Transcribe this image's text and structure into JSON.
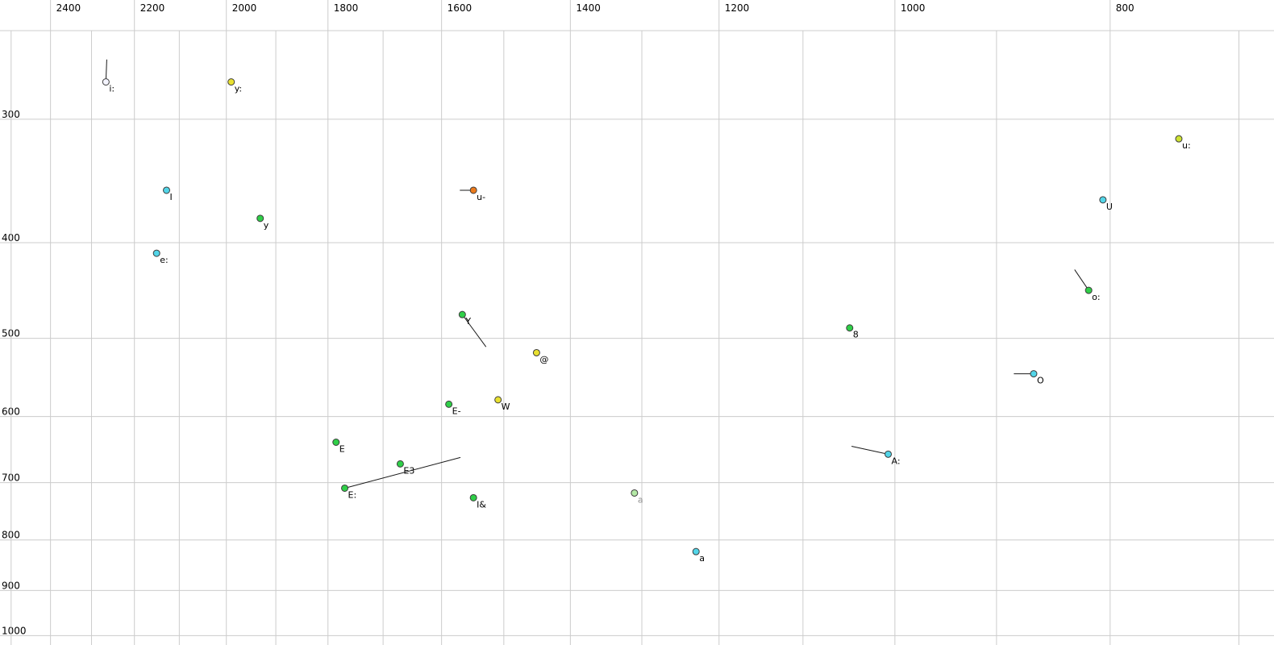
{
  "page": {
    "background": "#ffffff"
  },
  "chart_data": {
    "type": "scatter",
    "title": "",
    "description": "Vowel formant plot: F2 (Hz) on reversed log x-axis, F1 (Hz) on log y-axis increasing downward; points labeled with vowel symbols, some with diphthong tail lines",
    "x_axis": {
      "unit": "Hz",
      "scale": "log",
      "reversed": true,
      "range": [
        2529,
        675
      ],
      "labeled_ticks": [
        2400,
        2200,
        2000,
        1800,
        1600,
        1400,
        1200,
        1000,
        800
      ],
      "minor_gridlines": [
        2500,
        2300,
        2100,
        1900,
        1700,
        1500,
        1300,
        1100,
        900,
        700
      ]
    },
    "y_axis": {
      "unit": "Hz",
      "scale": "log",
      "range": [
        244,
        1022
      ],
      "labeled_ticks": [
        300,
        400,
        500,
        600,
        700,
        800,
        900,
        1000
      ]
    },
    "grid_on": true,
    "grid_color": "#cccccc",
    "marker_stroke": "#3c3c3c",
    "tail_color": "#1a1a1a",
    "label_color": "#000000",
    "palette": {
      "white": "#f4f4ff",
      "yellow": "#e8e030",
      "yellowgreen": "#cee332",
      "cyan": "#52d5e8",
      "green": "#2fcf48",
      "orange": "#ec7b1c",
      "palegreen": "#b4e9a6"
    },
    "points": [
      {
        "label": "i:",
        "f2": 2266,
        "f1": 275,
        "color": "white",
        "tail": {
          "f2": 2264,
          "f1": 261
        }
      },
      {
        "label": "y:",
        "f2": 1990,
        "f1": 275,
        "color": "yellow"
      },
      {
        "label": "I",
        "f2": 2128,
        "f1": 354,
        "color": "cyan"
      },
      {
        "label": "y",
        "f2": 1931,
        "f1": 378,
        "color": "green"
      },
      {
        "label": "e:",
        "f2": 2150,
        "f1": 410,
        "color": "cyan"
      },
      {
        "label": "u-",
        "f2": 1548,
        "f1": 354,
        "color": "orange",
        "tail": {
          "f2": 1570,
          "f1": 354
        }
      },
      {
        "label": "u:",
        "f2": 745,
        "f1": 314,
        "color": "yellowgreen"
      },
      {
        "label": "U",
        "f2": 806,
        "f1": 362,
        "color": "cyan"
      },
      {
        "label": "o:",
        "f2": 818,
        "f1": 447,
        "color": "green",
        "tail": {
          "f2": 830,
          "f1": 426
        }
      },
      {
        "label": "8",
        "f2": 1048,
        "f1": 488,
        "color": "green"
      },
      {
        "label": "@",
        "f2": 1450,
        "f1": 517,
        "color": "yellow"
      },
      {
        "label": "O",
        "f2": 866,
        "f1": 543,
        "color": "cyan",
        "tail": {
          "f2": 884,
          "f1": 543
        }
      },
      {
        "label": "E-",
        "f2": 1588,
        "f1": 583,
        "color": "green"
      },
      {
        "label": "W",
        "f2": 1509,
        "f1": 577,
        "color": "yellow"
      },
      {
        "label": "E",
        "f2": 1785,
        "f1": 637,
        "color": "green"
      },
      {
        "label": "E3",
        "f2": 1670,
        "f1": 670,
        "color": "green"
      },
      {
        "label": "E:",
        "f2": 1769,
        "f1": 709,
        "color": "green",
        "tail": {
          "f2": 1569,
          "f1": 660
        }
      },
      {
        "label": "I&",
        "f2": 1548,
        "f1": 725,
        "color": "green"
      },
      {
        "label": "a",
        "f2": 1310,
        "f1": 717,
        "color": "palegreen",
        "label_color": "#909090"
      },
      {
        "label": "a",
        "f2": 1229,
        "f1": 822,
        "color": "cyan"
      },
      {
        "label": "A:",
        "f2": 1007,
        "f1": 655,
        "color": "cyan",
        "tail": {
          "f2": 1046,
          "f1": 643
        }
      },
      {
        "label": "Y",
        "f2": 1566,
        "f1": 473,
        "color": "green",
        "tail": {
          "f2": 1528,
          "f1": 510
        }
      }
    ]
  }
}
